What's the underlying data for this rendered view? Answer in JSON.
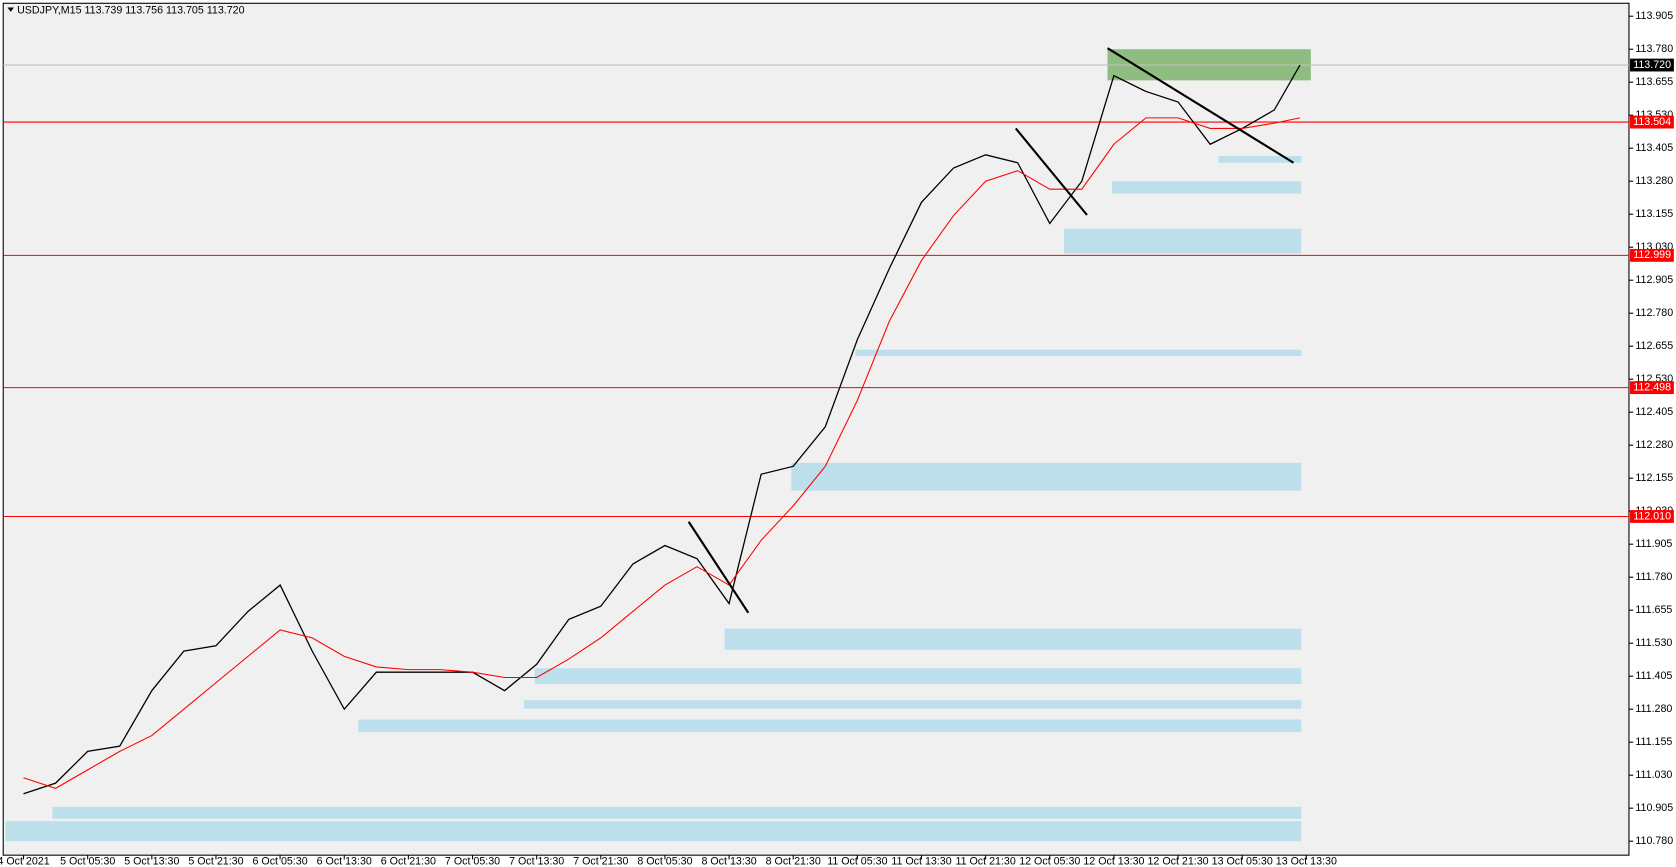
{
  "chart_data": {
    "type": "line",
    "title": "USDJPY,M15  113.739 113.756 113.705 113.720",
    "categories": [
      "4 Oct 2021",
      "5 Oct 05:30",
      "5 Oct 13:30",
      "5 Oct 21:30",
      "6 Oct 05:30",
      "6 Oct 13:30",
      "6 Oct 21:30",
      "7 Oct 05:30",
      "7 Oct 13:30",
      "7 Oct 21:30",
      "8 Oct 05:30",
      "8 Oct 13:30",
      "8 Oct 21:30",
      "11 Oct 05:30",
      "11 Oct 13:30",
      "11 Oct 21:30",
      "12 Oct 05:30",
      "12 Oct 13:30",
      "12 Oct 21:30",
      "13 Oct 05:30",
      "13 Oct 13:30"
    ],
    "xlim": [
      -0.317,
      25.03
    ],
    "ylim": [
      110.727,
      113.954
    ],
    "yticks": [
      113.905,
      {
        "value": 113.78,
        "label": "113.780"
      },
      113.655,
      {
        "value": 113.53,
        "label": "113.530"
      },
      113.405,
      {
        "value": 113.28,
        "label": "113.280"
      },
      113.155,
      {
        "value": 113.03,
        "label": "113.030"
      },
      112.905,
      {
        "value": 112.78,
        "label": "112.780"
      },
      112.655,
      {
        "value": 112.53,
        "label": "112.530"
      },
      112.405,
      {
        "value": 112.28,
        "label": "112.280"
      },
      112.155,
      {
        "value": 112.03,
        "label": "112.030"
      },
      111.905,
      {
        "value": 111.78,
        "label": "111.780"
      },
      111.655,
      {
        "value": 111.53,
        "label": "111.530"
      },
      111.405,
      {
        "value": 111.28,
        "label": "111.280"
      },
      111.155,
      {
        "value": 111.03,
        "label": "111.030"
      },
      110.905,
      {
        "value": 110.78,
        "label": "110.780"
      }
    ],
    "x": [
      0,
      0.5,
      1,
      1.5,
      2,
      2.5,
      3,
      3.5,
      4,
      4.5,
      5,
      5.5,
      6,
      6.5,
      7,
      7.5,
      8,
      8.5,
      9,
      9.5,
      10,
      10.5,
      11,
      11.5,
      12,
      12.5,
      13,
      13.5,
      14,
      14.5,
      15,
      15.5,
      16,
      16.5,
      17,
      17.5,
      18,
      18.5,
      19,
      19.5,
      19.9
    ],
    "series": [
      {
        "color": "#000000",
        "values": [
          110.96,
          111.0,
          111.12,
          111.14,
          111.35,
          111.5,
          111.52,
          111.65,
          111.75,
          111.5,
          111.28,
          111.42,
          111.42,
          111.42,
          111.42,
          111.35,
          111.45,
          111.62,
          111.67,
          111.83,
          111.9,
          111.85,
          111.68,
          112.17,
          112.2,
          112.35,
          112.68,
          112.95,
          113.2,
          113.33,
          113.38,
          113.35,
          113.12,
          113.28,
          113.68,
          113.62,
          113.58,
          113.42,
          113.48,
          113.55,
          113.72
        ]
      },
      {
        "color": "#ff0000",
        "values": [
          111.02,
          110.98,
          111.05,
          111.12,
          111.18,
          111.28,
          111.38,
          111.48,
          111.58,
          111.55,
          111.48,
          111.44,
          111.43,
          111.43,
          111.42,
          111.4,
          111.4,
          111.47,
          111.55,
          111.65,
          111.75,
          111.82,
          111.75,
          111.92,
          112.05,
          112.2,
          112.45,
          112.75,
          112.98,
          113.15,
          113.28,
          113.32,
          113.25,
          113.25,
          113.42,
          113.52,
          113.52,
          113.48,
          113.48,
          113.5,
          113.52
        ]
      }
    ],
    "levels": [
      {
        "value": 113.504,
        "label": "113.504"
      },
      {
        "value": 112.999,
        "label": "112.999"
      },
      {
        "value": 112.498,
        "label": "112.498"
      },
      {
        "value": 112.01,
        "label": "112.010"
      }
    ],
    "current_price": {
      "value": 113.72,
      "label": "113.720"
    },
    "zones": [
      {
        "color": "#bddfeb",
        "x": [
          -0.28,
          19.92
        ],
        "low": 110.78,
        "high": 110.856
      },
      {
        "color": "#bddfeb",
        "x": [
          0.45,
          19.92
        ],
        "low": 110.865,
        "high": 110.91
      },
      {
        "color": "#bddfeb",
        "x": [
          5.22,
          19.92
        ],
        "low": 111.193,
        "high": 111.241
      },
      {
        "color": "#bddfeb",
        "x": [
          7.8,
          19.92
        ],
        "low": 111.282,
        "high": 111.314
      },
      {
        "color": "#bddfeb",
        "x": [
          7.97,
          19.92
        ],
        "low": 111.375,
        "high": 111.435
      },
      {
        "color": "#bddfeb",
        "x": [
          10.93,
          19.92
        ],
        "low": 111.505,
        "high": 111.585
      },
      {
        "color": "#bddfeb",
        "x": [
          11.97,
          19.92
        ],
        "low": 112.108,
        "high": 112.213
      },
      {
        "color": "#bddfeb",
        "x": [
          12.97,
          19.92
        ],
        "low": 112.618,
        "high": 112.642
      },
      {
        "color": "#bddfeb",
        "x": [
          16.22,
          19.92
        ],
        "low": 113.006,
        "high": 113.1
      },
      {
        "color": "#bddfeb",
        "x": [
          16.97,
          19.92
        ],
        "low": 113.233,
        "high": 113.28
      },
      {
        "color": "#bddfeb",
        "x": [
          18.63,
          19.92
        ],
        "low": 113.35,
        "high": 113.375
      },
      {
        "color": "#8fbc80",
        "x": [
          16.9,
          20.07
        ],
        "low": 113.662,
        "high": 113.78
      }
    ],
    "trendlines": [
      {
        "x": [
          10.37,
          11.3
        ],
        "y": [
          111.99,
          111.645
        ]
      },
      {
        "x": [
          15.47,
          16.58
        ],
        "y": [
          113.48,
          113.152
        ]
      },
      {
        "x": [
          16.9,
          19.8
        ],
        "y": [
          113.784,
          113.35
        ]
      }
    ]
  }
}
